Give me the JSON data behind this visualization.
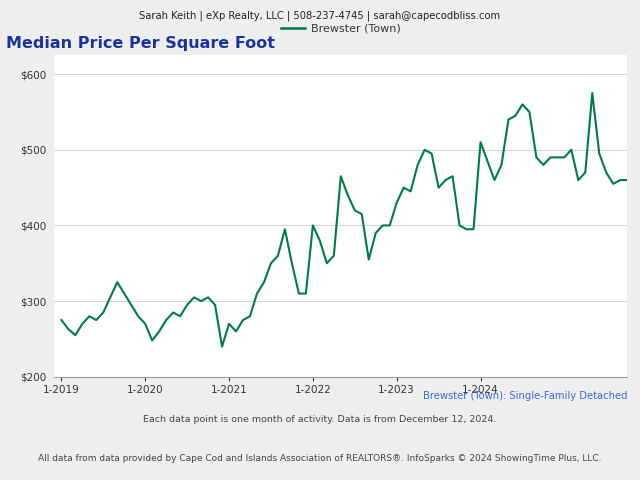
{
  "header": "Sarah Keith | eXp Realty, LLC | 508-237-4745 | sarah@capecodbliss.com",
  "title": "Median Price Per Square Foot",
  "legend_label": "Brewster (Town)",
  "subtitle_label": "Brewster (Town): Single-Family Detached",
  "footnote1": "Each data point is one month of activity. Data is from December 12, 2024.",
  "footnote2": "All data from data provided by Cape Cod and Islands Association of REALTORS®. InfoSparks © 2024 ShowingTime Plus, LLC.",
  "line_color": "#007a45",
  "background_color": "#eeeeee",
  "plot_bg_color": "#ffffff",
  "header_bg_color": "#eeeeee",
  "ylim": [
    200,
    625
  ],
  "yticks": [
    200,
    300,
    400,
    500,
    600
  ],
  "xtick_labels": [
    "1-2019",
    "1-2020",
    "1-2021",
    "1-2022",
    "1-2023",
    "1-2024"
  ],
  "xtick_positions": [
    0,
    12,
    24,
    36,
    48,
    60
  ],
  "values": [
    275,
    263,
    255,
    270,
    280,
    275,
    285,
    305,
    325,
    310,
    295,
    280,
    270,
    248,
    260,
    275,
    285,
    280,
    295,
    305,
    300,
    305,
    295,
    240,
    270,
    260,
    275,
    280,
    310,
    325,
    350,
    360,
    395,
    350,
    310,
    310,
    400,
    380,
    350,
    360,
    465,
    440,
    420,
    415,
    355,
    390,
    400,
    400,
    430,
    450,
    445,
    480,
    500,
    495,
    450,
    460,
    465,
    400,
    395,
    395,
    510,
    485,
    460,
    480,
    540,
    545,
    560,
    550,
    490,
    480,
    490,
    490,
    490,
    500,
    460,
    470,
    575,
    495,
    470,
    455,
    460,
    460
  ]
}
